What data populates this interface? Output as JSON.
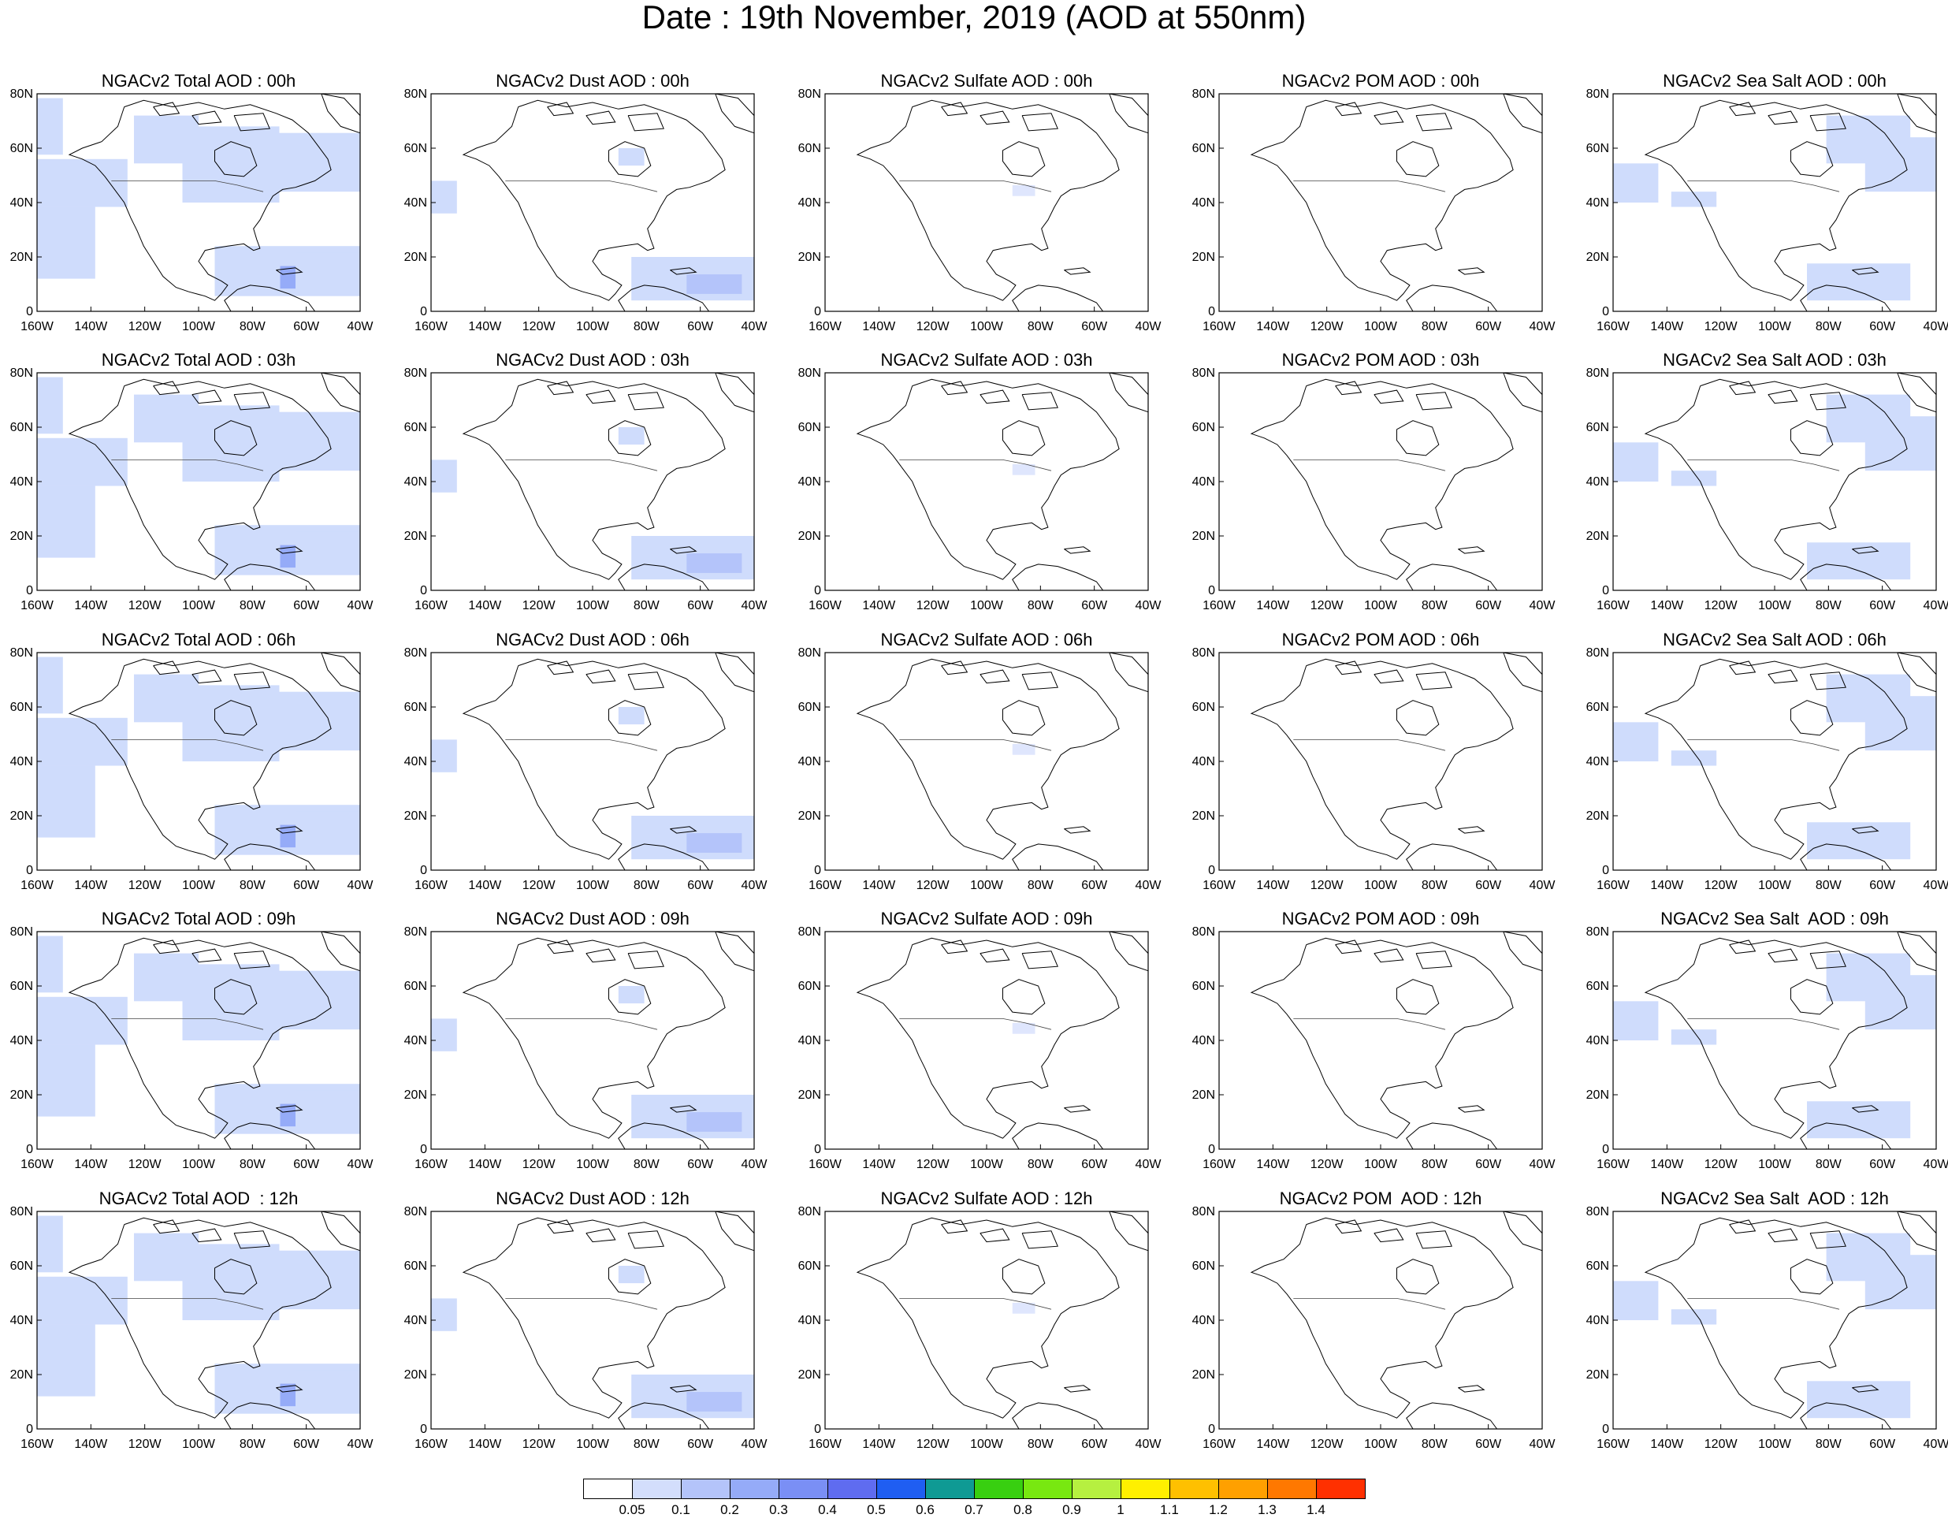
{
  "title": "Date : 19th November, 2019 (AOD at 550nm)",
  "lat_labels": [
    "0",
    "20N",
    "40N",
    "60N",
    "80N"
  ],
  "lon_labels": [
    "160W",
    "140W",
    "120W",
    "100W",
    "80W",
    "60W",
    "40W"
  ],
  "colorbar": {
    "labels": [
      "0.05",
      "0.1",
      "0.2",
      "0.3",
      "0.4",
      "0.5",
      "0.6",
      "0.7",
      "0.8",
      "0.9",
      "1",
      "1.1",
      "1.2",
      "1.3",
      "1.4"
    ],
    "colors": [
      "#ffffff",
      "#d3defc",
      "#b4c4fa",
      "#95abf8",
      "#7a8ff5",
      "#5f6cf0",
      "#1f5ef2",
      "#0f9a94",
      "#38cf10",
      "#78e810",
      "#b6f040",
      "#fff000",
      "#ffc000",
      "#ffa000",
      "#ff7800",
      "#ff3000"
    ]
  },
  "species_colors": {
    "total": "#cfdcfc",
    "dust": "#cfdcfc",
    "sulfate": "#dfe6fd",
    "pom": "#ffffff",
    "seasalt": "#cfdcfc"
  },
  "rows": [
    {
      "hour": "00h",
      "titles": [
        "NGACv2 Total AOD : 00h",
        "NGACv2 Dust AOD : 00h",
        "NGACv2 Sulfate AOD : 00h",
        "NGACv2 POM AOD : 00h",
        "NGACv2 Sea Salt AOD : 00h"
      ]
    },
    {
      "hour": "03h",
      "titles": [
        "NGACv2 Total AOD : 03h",
        "NGACv2 Dust AOD : 03h",
        "NGACv2 Sulfate AOD : 03h",
        "NGACv2 POM AOD : 03h",
        "NGACv2 Sea Salt AOD : 03h"
      ]
    },
    {
      "hour": "06h",
      "titles": [
        "NGACv2 Total AOD : 06h",
        "NGACv2 Dust AOD : 06h",
        "NGACv2 Sulfate AOD : 06h",
        "NGACv2 POM AOD : 06h",
        "NGACv2 Sea Salt AOD : 06h"
      ]
    },
    {
      "hour": "09h",
      "titles": [
        "NGACv2 Total AOD : 09h",
        "NGACv2 Dust AOD : 09h",
        "NGACv2 Sulfate AOD : 09h",
        "NGACv2 POM AOD : 09h",
        "NGACv2 Sea Salt  AOD : 09h"
      ]
    },
    {
      "hour": "12h",
      "titles": [
        "NGACv2 Total AOD  : 12h",
        "NGACv2 Dust AOD : 12h",
        "NGACv2 Sulfate AOD : 12h",
        "NGACv2 POM  AOD : 12h",
        "NGACv2 Sea Salt  AOD : 12h"
      ]
    }
  ]
}
